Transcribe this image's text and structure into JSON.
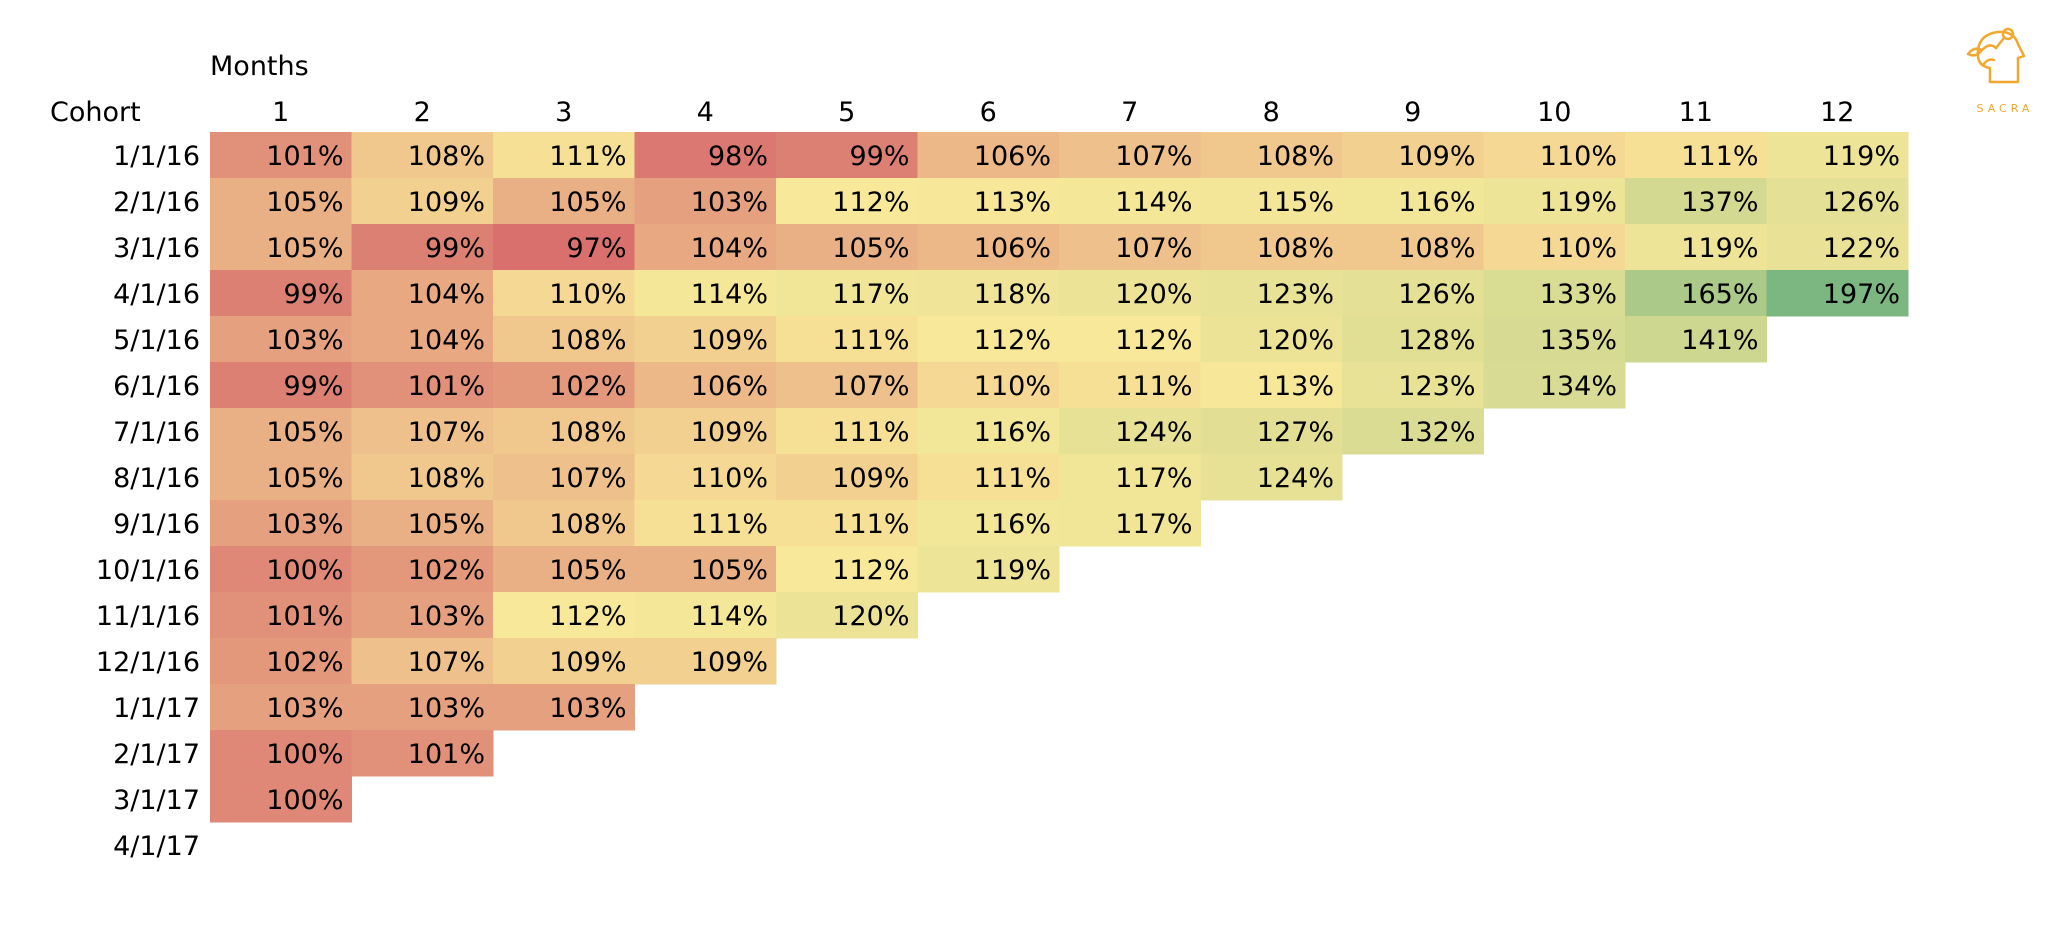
{
  "chart_data": {
    "type": "heatmap",
    "row_header": "Cohort",
    "column_group_header": "Months",
    "columns": [
      "1",
      "2",
      "3",
      "4",
      "5",
      "6",
      "7",
      "8",
      "9",
      "10",
      "11",
      "12"
    ],
    "rows": [
      "1/1/16",
      "2/1/16",
      "3/1/16",
      "4/1/16",
      "5/1/16",
      "6/1/16",
      "7/1/16",
      "8/1/16",
      "9/1/16",
      "10/1/16",
      "11/1/16",
      "12/1/16",
      "1/1/17",
      "2/1/17",
      "3/1/17",
      "4/1/17"
    ],
    "values": [
      [
        101,
        108,
        111,
        98,
        99,
        106,
        107,
        108,
        109,
        110,
        111,
        119
      ],
      [
        105,
        109,
        105,
        103,
        112,
        113,
        114,
        115,
        116,
        119,
        137,
        126
      ],
      [
        105,
        99,
        97,
        104,
        105,
        106,
        107,
        108,
        108,
        110,
        119,
        122
      ],
      [
        99,
        104,
        110,
        114,
        117,
        118,
        120,
        123,
        126,
        133,
        165,
        197
      ],
      [
        103,
        104,
        108,
        109,
        111,
        112,
        112,
        120,
        128,
        135,
        141
      ],
      [
        99,
        101,
        102,
        106,
        107,
        110,
        111,
        113,
        123,
        134
      ],
      [
        105,
        107,
        108,
        109,
        111,
        116,
        124,
        127,
        132
      ],
      [
        105,
        108,
        107,
        110,
        109,
        111,
        117,
        124
      ],
      [
        103,
        105,
        108,
        111,
        111,
        116,
        117
      ],
      [
        100,
        102,
        105,
        105,
        112,
        119
      ],
      [
        101,
        103,
        112,
        114,
        120
      ],
      [
        102,
        107,
        109,
        109
      ],
      [
        103,
        103,
        103
      ],
      [
        100,
        101
      ],
      [
        100
      ],
      []
    ],
    "value_suffix": "%",
    "color_scale": {
      "low": "#d9706e",
      "mid": "#f8e899",
      "high": "#7cb680"
    }
  },
  "brand": {
    "name": "SACRA",
    "color": "#f0a830"
  }
}
